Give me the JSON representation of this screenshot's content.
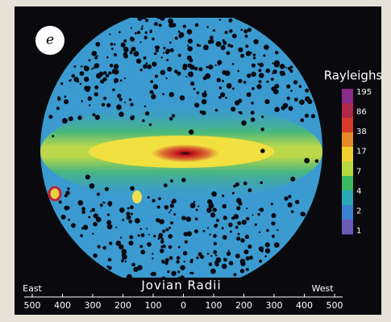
{
  "panel_label": "e",
  "colorbar": {
    "title": "Rayleighs",
    "labels": [
      "195",
      "86",
      "38",
      "17",
      "7",
      "4",
      "2",
      "1"
    ]
  },
  "axis": {
    "title": "Jovian Radii",
    "left": "East",
    "right": "West",
    "tick_labels": [
      "500",
      "400",
      "300",
      "200",
      "100",
      "0",
      "100",
      "200",
      "300",
      "400",
      "500"
    ]
  }
}
